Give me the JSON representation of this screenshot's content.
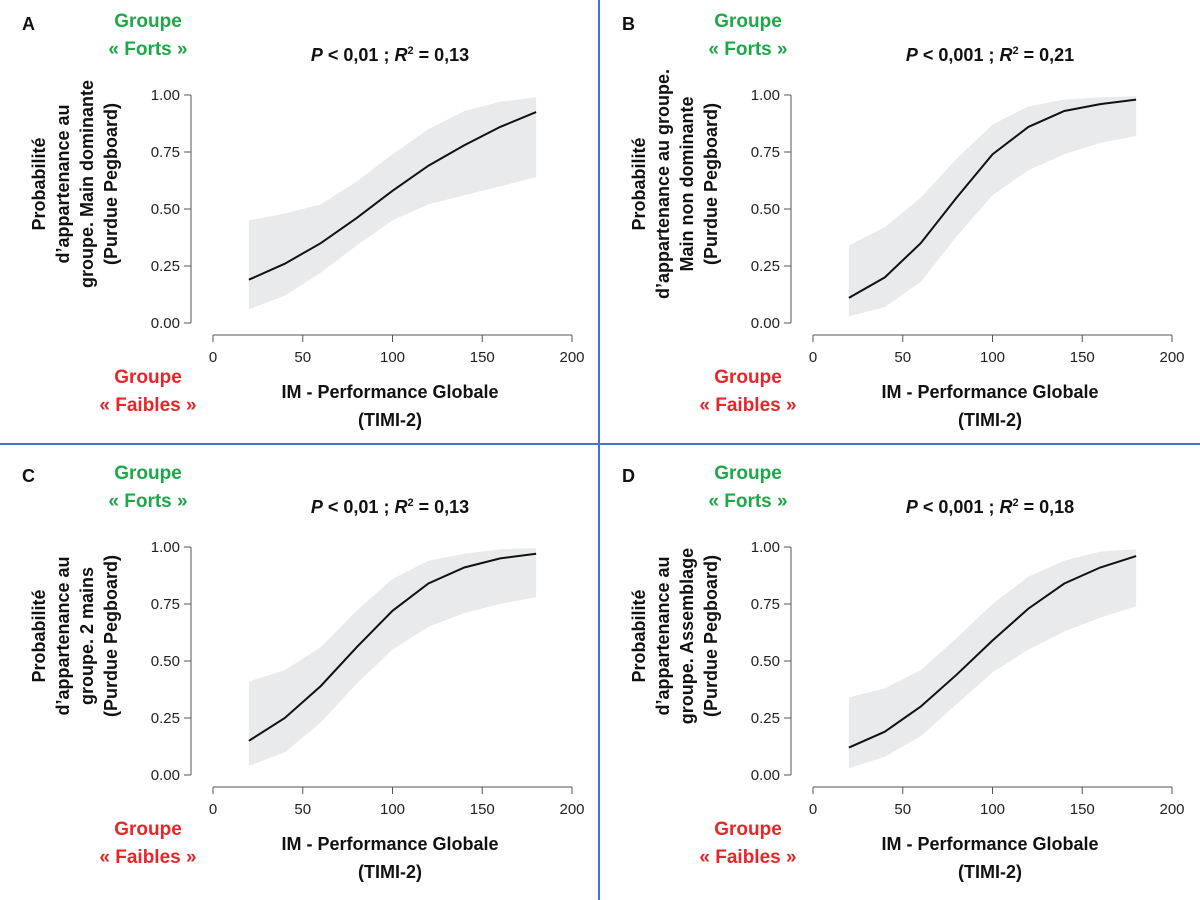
{
  "labels": {
    "group_strong_line1": "Groupe",
    "group_strong_line2": "« Forts »",
    "group_weak_line1": "Groupe",
    "group_weak_line2": "« Faibles »",
    "xlabel_line1": "IM - Performance Globale",
    "xlabel_line2": "(TIMI-2)"
  },
  "panels": [
    {
      "letter": "A",
      "p_text": "P",
      "p_rest": " < 0,01 ; ",
      "r_text": "R",
      "r_sup": "2",
      "r_rest": " = 0,13",
      "ylabel": [
        "Probabilité",
        "d’appartenance au",
        "groupe. Main dominante",
        "(Purdue Pegboard)"
      ]
    },
    {
      "letter": "B",
      "p_text": "P",
      "p_rest": " < 0,001 ; ",
      "r_text": "R",
      "r_sup": "2",
      "r_rest": " = 0,21",
      "ylabel": [
        "Probabilité",
        "d’appartenance au groupe.",
        "Main non dominante",
        "(Purdue Pegboard)"
      ]
    },
    {
      "letter": "C",
      "p_text": "P",
      "p_rest": " < 0,01 ; ",
      "r_text": "R",
      "r_sup": "2",
      "r_rest": " = 0,13",
      "ylabel": [
        "Probabilité",
        "d’appartenance au",
        "groupe. 2 mains",
        "(Purdue Pegboard)"
      ]
    },
    {
      "letter": "D",
      "p_text": "P",
      "p_rest": " < 0,001 ; ",
      "r_text": "R",
      "r_sup": "2",
      "r_rest": " = 0,18",
      "ylabel": [
        "Probabilité",
        "d’appartenance au",
        "groupe. Assemblage",
        "(Purdue Pegboard)"
      ]
    }
  ],
  "chart_data": [
    {
      "panel": "A",
      "type": "line",
      "x": [
        20,
        40,
        60,
        80,
        100,
        120,
        140,
        160,
        180
      ],
      "y": [
        0.19,
        0.26,
        0.35,
        0.46,
        0.58,
        0.69,
        0.78,
        0.86,
        0.925
      ],
      "ci_lower": [
        0.06,
        0.12,
        0.22,
        0.34,
        0.45,
        0.52,
        0.56,
        0.6,
        0.64
      ],
      "ci_upper": [
        0.45,
        0.48,
        0.52,
        0.62,
        0.74,
        0.85,
        0.93,
        0.97,
        0.99
      ],
      "xlim": [
        0,
        200
      ],
      "ylim": [
        0,
        1
      ],
      "xticks": [
        "0",
        "50",
        "100",
        "150",
        "200"
      ],
      "yticks": [
        "0.00",
        "0.25",
        "0.50",
        "0.75",
        "1.00"
      ]
    },
    {
      "panel": "B",
      "type": "line",
      "x": [
        20,
        40,
        60,
        80,
        100,
        120,
        140,
        160,
        180
      ],
      "y": [
        0.11,
        0.2,
        0.35,
        0.55,
        0.74,
        0.86,
        0.93,
        0.96,
        0.98
      ],
      "ci_lower": [
        0.03,
        0.07,
        0.18,
        0.38,
        0.56,
        0.67,
        0.74,
        0.79,
        0.82
      ],
      "ci_upper": [
        0.34,
        0.42,
        0.55,
        0.72,
        0.87,
        0.95,
        0.98,
        0.99,
        0.995
      ],
      "xlim": [
        0,
        200
      ],
      "ylim": [
        0,
        1
      ],
      "xticks": [
        "0",
        "50",
        "100",
        "150",
        "200"
      ],
      "yticks": [
        "0.00",
        "0.25",
        "0.50",
        "0.75",
        "1.00"
      ]
    },
    {
      "panel": "C",
      "type": "line",
      "x": [
        20,
        40,
        60,
        80,
        100,
        120,
        140,
        160,
        180
      ],
      "y": [
        0.15,
        0.25,
        0.39,
        0.56,
        0.72,
        0.84,
        0.91,
        0.95,
        0.97
      ],
      "ci_lower": [
        0.04,
        0.1,
        0.23,
        0.4,
        0.55,
        0.65,
        0.71,
        0.75,
        0.78
      ],
      "ci_upper": [
        0.41,
        0.46,
        0.56,
        0.72,
        0.86,
        0.94,
        0.97,
        0.99,
        0.995
      ],
      "xlim": [
        0,
        200
      ],
      "ylim": [
        0,
        1
      ],
      "xticks": [
        "0",
        "50",
        "100",
        "150",
        "200"
      ],
      "yticks": [
        "0.00",
        "0.25",
        "0.50",
        "0.75",
        "1.00"
      ]
    },
    {
      "panel": "D",
      "type": "line",
      "x": [
        20,
        40,
        60,
        80,
        100,
        120,
        140,
        160,
        180
      ],
      "y": [
        0.12,
        0.19,
        0.3,
        0.44,
        0.59,
        0.73,
        0.84,
        0.91,
        0.96
      ],
      "ci_lower": [
        0.03,
        0.08,
        0.17,
        0.31,
        0.45,
        0.55,
        0.63,
        0.69,
        0.74
      ],
      "ci_upper": [
        0.34,
        0.38,
        0.46,
        0.6,
        0.75,
        0.87,
        0.94,
        0.98,
        0.99
      ],
      "xlim": [
        0,
        200
      ],
      "ylim": [
        0,
        1
      ],
      "xticks": [
        "0",
        "50",
        "100",
        "150",
        "200"
      ],
      "yticks": [
        "0.00",
        "0.25",
        "0.50",
        "0.75",
        "1.00"
      ]
    }
  ]
}
